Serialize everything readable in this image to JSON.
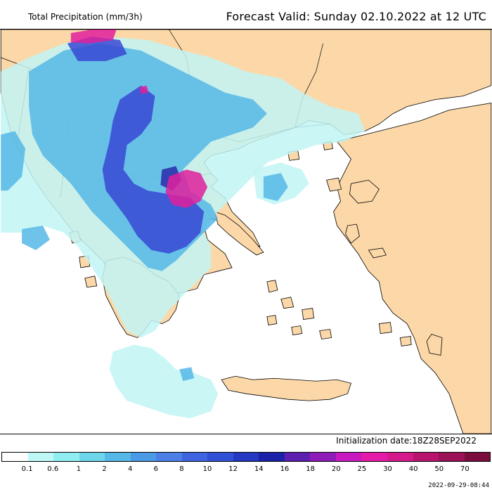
{
  "header": {
    "title": "Total Precipitation (mm/3h)",
    "forecast_valid": "Forecast Valid:  Sunday 02.10.2022 at 12 UTC"
  },
  "footer": {
    "initialization": "Initialization date:18Z28SEP2022",
    "timestamp": "2022-09-29-08:44"
  },
  "legend": {
    "ticks": [
      "0.1",
      "0.6",
      "1",
      "2",
      "4",
      "6",
      "8",
      "10",
      "12",
      "14",
      "16",
      "18",
      "20",
      "25",
      "30",
      "40",
      "50",
      "70"
    ],
    "colors": [
      "#ffffff",
      "#bff7f7",
      "#8eeef2",
      "#6ed6ea",
      "#56b8e6",
      "#4a9ae6",
      "#4c80e6",
      "#3e64e0",
      "#3050d8",
      "#2438c4",
      "#1c22a8",
      "#5e1eb0",
      "#8e1cb8",
      "#c818c0",
      "#e61aa8",
      "#d41a8a",
      "#b8146e",
      "#9c1258",
      "#7a0c3e"
    ]
  },
  "colors": {
    "land": "#fcd8a8",
    "sea": "#ffffff",
    "precip_light": "#c2f4f4",
    "precip_medium": "#56b8e6",
    "precip_heavy": "#3040d0",
    "precip_extreme": "#e0209c"
  }
}
